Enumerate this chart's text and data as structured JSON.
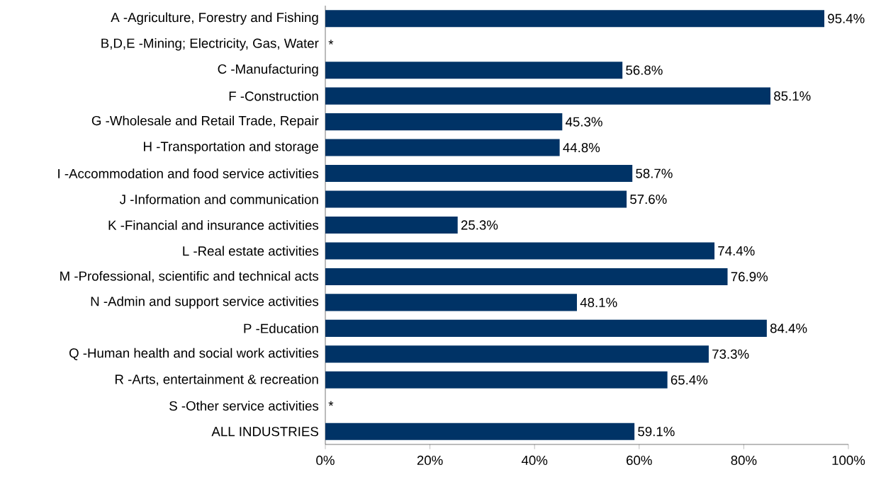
{
  "chart_data": {
    "type": "bar",
    "orientation": "horizontal",
    "color": "#003366",
    "categories": [
      "A -Agriculture, Forestry and Fishing",
      "B,D,E -Mining; Electricity, Gas, Water",
      "C -Manufacturing",
      "F -Construction",
      "G -Wholesale and Retail Trade, Repair",
      "H -Transportation and storage",
      "I -Accommodation and food service activities",
      "J -Information and communication",
      "K -Financial and insurance activities",
      "L -Real estate activities",
      "M -Professional, scientific and technical acts",
      "N -Admin and support service activities",
      "P -Education",
      "Q -Human health and social work activities",
      "R -Arts, entertainment & recreation",
      "S -Other service activities",
      "ALL INDUSTRIES"
    ],
    "values": [
      95.4,
      null,
      56.8,
      85.1,
      45.3,
      44.8,
      58.7,
      57.6,
      25.3,
      74.4,
      76.9,
      48.1,
      84.4,
      73.3,
      65.4,
      null,
      59.1
    ],
    "value_labels": [
      "95.4%",
      "*",
      "56.8%",
      "85.1%",
      "45.3%",
      "44.8%",
      "58.7%",
      "57.6%",
      "25.3%",
      "74.4%",
      "76.9%",
      "48.1%",
      "84.4%",
      "73.3%",
      "65.4%",
      "*",
      "59.1%"
    ],
    "xlim": [
      0,
      100
    ],
    "xticks": [
      {
        "value": 0,
        "label": "0%"
      },
      {
        "value": 20,
        "label": "20%"
      },
      {
        "value": 40,
        "label": "40%"
      },
      {
        "value": 60,
        "label": "60%"
      },
      {
        "value": 80,
        "label": "80%"
      },
      {
        "value": 100,
        "label": "100%"
      }
    ]
  }
}
